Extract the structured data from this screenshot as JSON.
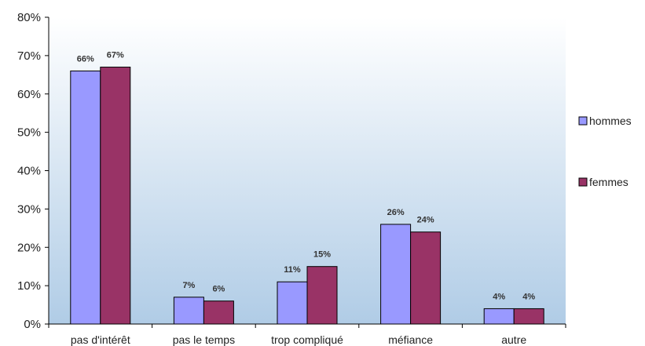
{
  "chart_data": {
    "type": "bar",
    "categories": [
      "pas d'intérêt",
      "pas le temps",
      "trop compliqué",
      "méfiance",
      "autre"
    ],
    "series": [
      {
        "name": "hommes",
        "values": [
          66,
          7,
          11,
          26,
          4
        ],
        "labels": [
          "66%",
          "7%",
          "11%",
          "26%",
          "4%"
        ],
        "color": "#9999ff"
      },
      {
        "name": "femmes",
        "values": [
          67,
          6,
          15,
          24,
          4
        ],
        "labels": [
          "67%",
          "6%",
          "15%",
          "24%",
          "4%"
        ],
        "color": "#993366"
      }
    ],
    "ylim": [
      0,
      80
    ],
    "yticks": [
      "0%",
      "10%",
      "20%",
      "30%",
      "40%",
      "50%",
      "60%",
      "70%",
      "80%"
    ],
    "plot_background": {
      "top": "#ffffff",
      "bottom": "#b0cce6"
    },
    "legend_position": "right",
    "grid": false
  }
}
